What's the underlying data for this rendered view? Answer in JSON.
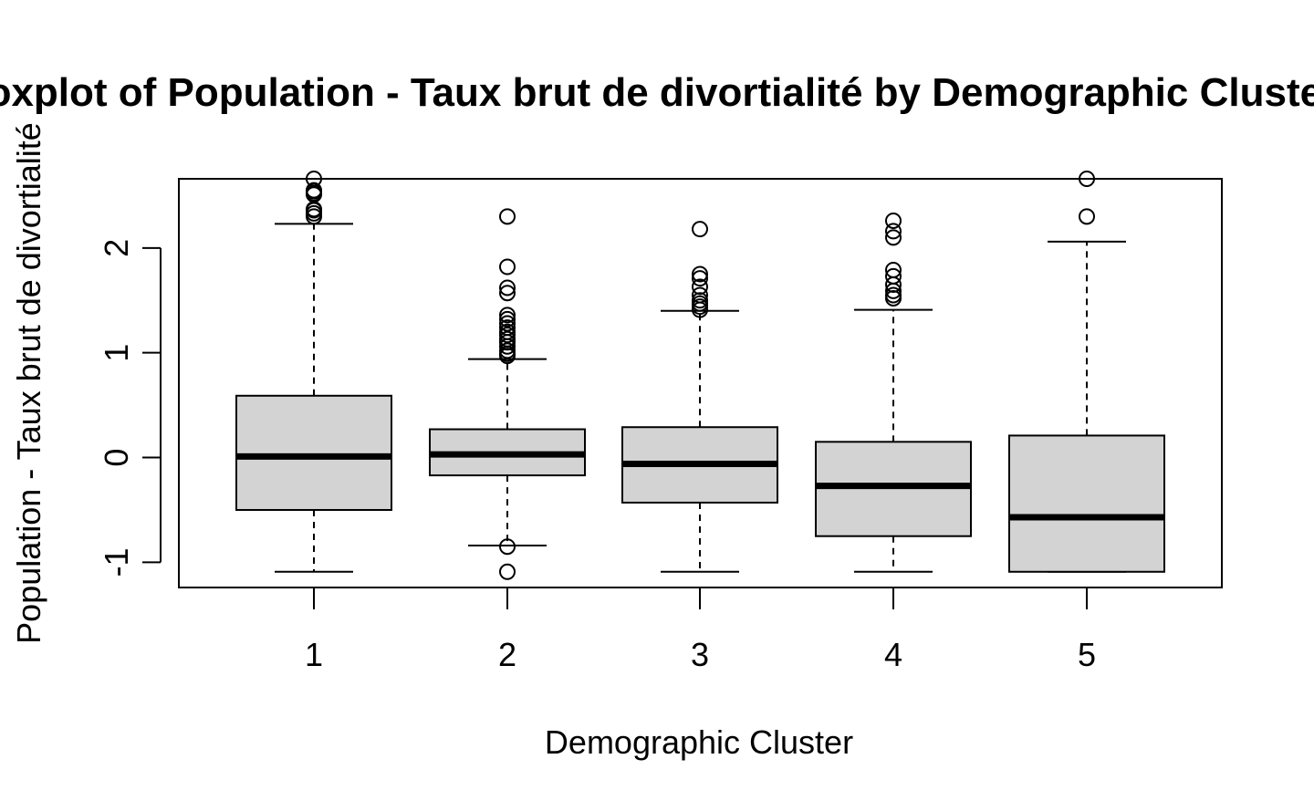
{
  "chart_data": {
    "type": "boxplot",
    "title": "Boxplot of Population - Taux brut de divortialité by Demographic Cluster",
    "xlabel": "Demographic Cluster",
    "ylabel": "Population - Taux brut de divortialité",
    "categories": [
      "1",
      "2",
      "3",
      "4",
      "5"
    ],
    "ylim": [
      -1.24,
      2.66
    ],
    "yticks": [
      -1,
      0,
      1,
      2
    ],
    "ytick_labels": [
      "-1",
      "0",
      "1",
      "2"
    ],
    "box_fill": "#d3d3d3",
    "line_color": "#000000",
    "grid": false,
    "legend": "none",
    "boxes": [
      {
        "category": "1",
        "whisker_low": -1.09,
        "q1": -0.5,
        "median": 0.01,
        "q3": 0.59,
        "whisker_high": 2.23,
        "outliers": [
          2.3,
          2.33,
          2.36,
          2.37,
          2.51,
          2.52,
          2.54,
          2.55,
          2.66
        ]
      },
      {
        "category": "2",
        "whisker_low": -0.84,
        "q1": -0.17,
        "median": 0.03,
        "q3": 0.27,
        "whisker_high": 0.94,
        "outliers": [
          -0.85,
          -1.09,
          0.97,
          0.99,
          1.02,
          1.06,
          1.1,
          1.13,
          1.17,
          1.2,
          1.24,
          1.28,
          1.32,
          1.36,
          1.57,
          1.62,
          1.82,
          2.3
        ]
      },
      {
        "category": "3",
        "whisker_low": -1.09,
        "q1": -0.43,
        "median": -0.06,
        "q3": 0.29,
        "whisker_high": 1.4,
        "outliers": [
          1.41,
          1.44,
          1.47,
          1.5,
          1.55,
          1.63,
          1.71,
          1.75,
          2.18
        ]
      },
      {
        "category": "4",
        "whisker_low": -1.09,
        "q1": -0.75,
        "median": -0.27,
        "q3": 0.15,
        "whisker_high": 1.41,
        "outliers": [
          1.52,
          1.55,
          1.59,
          1.65,
          1.73,
          1.79,
          2.1,
          2.16,
          2.26
        ]
      },
      {
        "category": "5",
        "whisker_low": -1.09,
        "q1": -1.09,
        "median": -0.57,
        "q3": 0.21,
        "whisker_high": 2.06,
        "outliers": [
          2.3,
          2.66
        ]
      }
    ]
  }
}
